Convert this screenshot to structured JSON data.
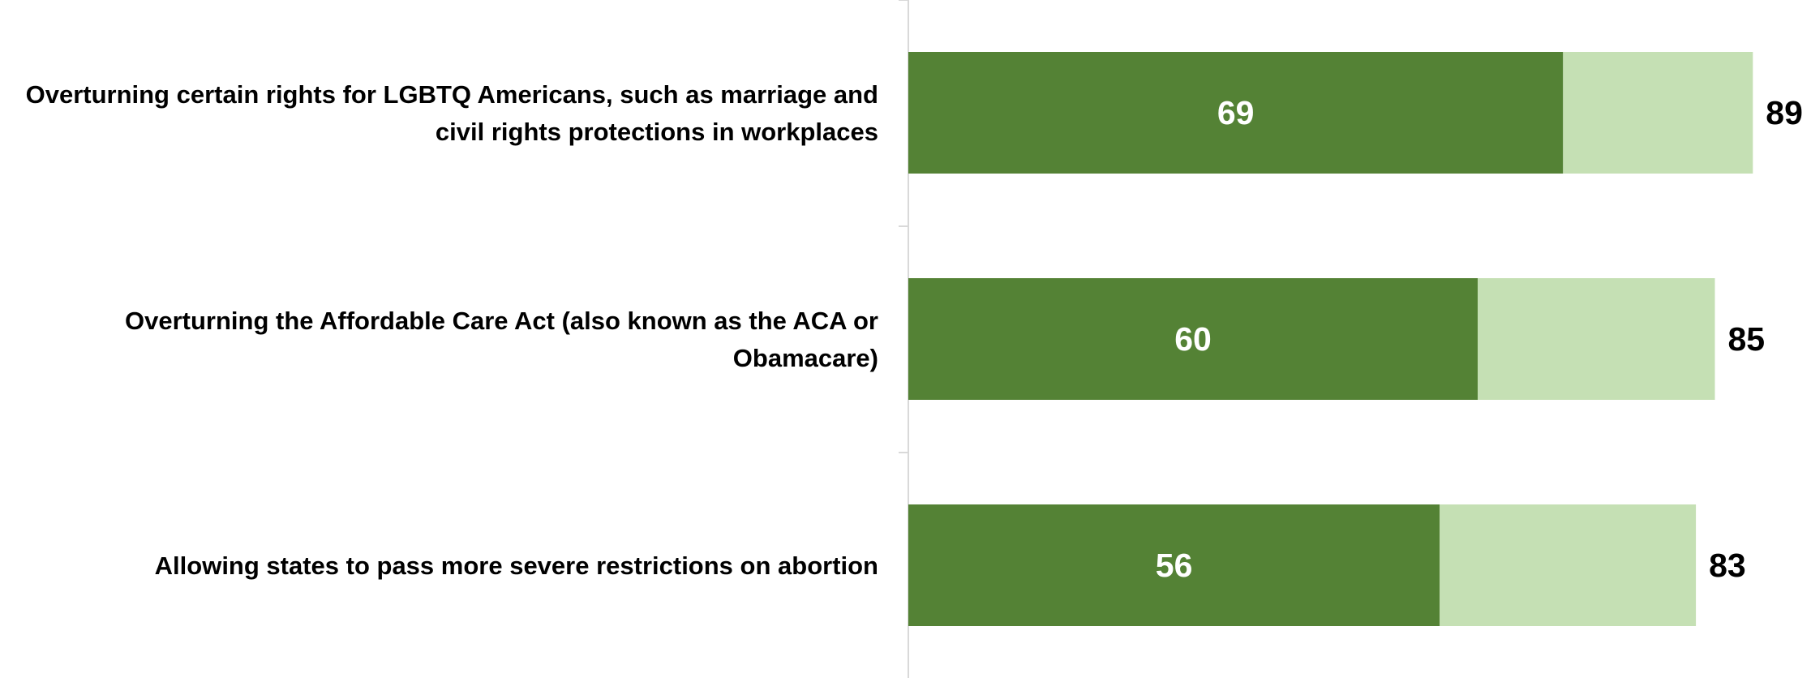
{
  "chart_data": {
    "type": "bar",
    "orientation": "horizontal",
    "stacked": true,
    "grid": false,
    "legend": "none",
    "categories": [
      {
        "lines": [
          "Overturning certain rights for LGBTQ Americans, such as marriage and",
          "civil rights protections in workplaces"
        ]
      },
      {
        "lines": [
          "Overturning the Affordable Care Act (also known as the ACA or",
          "Obamacare)"
        ]
      },
      {
        "lines": [
          "Allowing states to pass more severe restrictions on abortion"
        ]
      }
    ],
    "series": [
      {
        "values": [
          69,
          60,
          56
        ],
        "color": "#548235"
      },
      {
        "values": [
          20,
          25,
          27
        ],
        "color": "#c5e0b4"
      }
    ],
    "inner_labels": [
      "69",
      "60",
      "56"
    ],
    "total_labels": [
      "89",
      "85",
      "83"
    ],
    "xlim": [
      0,
      90
    ],
    "title": "",
    "xlabel": "",
    "ylabel": ""
  }
}
